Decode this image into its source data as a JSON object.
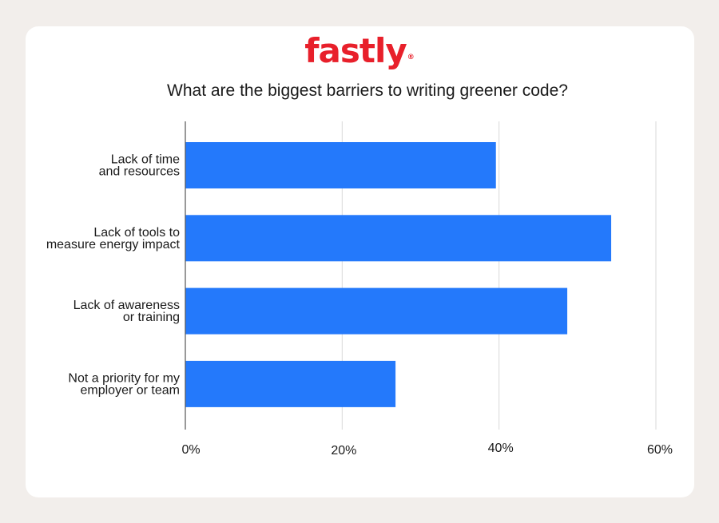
{
  "brand": {
    "logo_text": "fastly",
    "logo_mark": "®",
    "color": "#e8202b"
  },
  "chart_data": {
    "type": "bar",
    "orientation": "horizontal",
    "title": "What are the biggest barriers to writing greener code?",
    "categories": [
      [
        "Lack of time",
        "and resources"
      ],
      [
        "Lack of tools to",
        "measure energy impact"
      ],
      [
        "Lack of awareness",
        "or training"
      ],
      [
        "Not a priority for my",
        "employer or team"
      ]
    ],
    "values": [
      39.6,
      54.3,
      48.7,
      26.8
    ],
    "xlim": [
      0,
      60
    ],
    "ticks": [
      0,
      20,
      40,
      60
    ],
    "tick_labels": [
      "0%",
      "20%",
      "40%",
      "60%"
    ],
    "grid": true,
    "bar_color": "#2479fb"
  }
}
